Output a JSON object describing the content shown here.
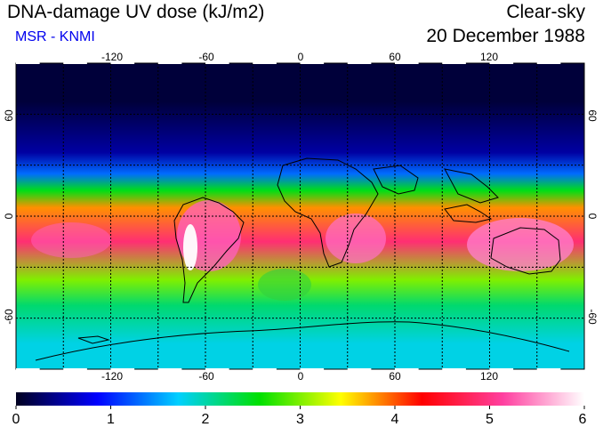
{
  "header": {
    "title": "DNA-damage UV dose (kJ/m2)",
    "source": "MSR - KNMI",
    "sky_condition": "Clear-sky",
    "date": "20 December 1988"
  },
  "map": {
    "type": "heatmap",
    "projection": "equirectangular",
    "lon_range": [
      -180,
      180
    ],
    "lat_range": [
      -90,
      90
    ],
    "lon_ticks": [
      "-120",
      "-60",
      "0",
      "60",
      "120"
    ],
    "lat_ticks_left": [
      "60",
      "0",
      "-60"
    ],
    "lat_ticks_right": [
      "60",
      "0",
      "-60"
    ],
    "gridlines": "dotted every 30 degrees",
    "field": [
      {
        "lat_from": 90,
        "lat_to": 45,
        "dose": 0.1
      },
      {
        "lat_from": 45,
        "lat_to": 30,
        "dose": 0.5
      },
      {
        "lat_from": 30,
        "lat_to": 20,
        "dose": 1.3
      },
      {
        "lat_from": 20,
        "lat_to": 10,
        "dose": 2.5
      },
      {
        "lat_from": 10,
        "lat_to": 0,
        "dose": 3.8
      },
      {
        "lat_from": 0,
        "lat_to": -30,
        "dose": 4.9
      },
      {
        "lat_from": -30,
        "lat_to": -45,
        "dose": 3.0
      },
      {
        "lat_from": -45,
        "lat_to": -60,
        "dose": 2.2
      },
      {
        "lat_from": -60,
        "lat_to": -90,
        "dose": 1.8
      }
    ]
  },
  "colorbar": {
    "min": 0,
    "max": 6,
    "tick_labels": [
      "0",
      "1",
      "2",
      "3",
      "4",
      "5",
      "6"
    ],
    "colors": [
      "#000020",
      "#0000ff",
      "#00d0ff",
      "#00e000",
      "#ffff00",
      "#ff0000",
      "#ff40a0",
      "#ffffff"
    ]
  }
}
